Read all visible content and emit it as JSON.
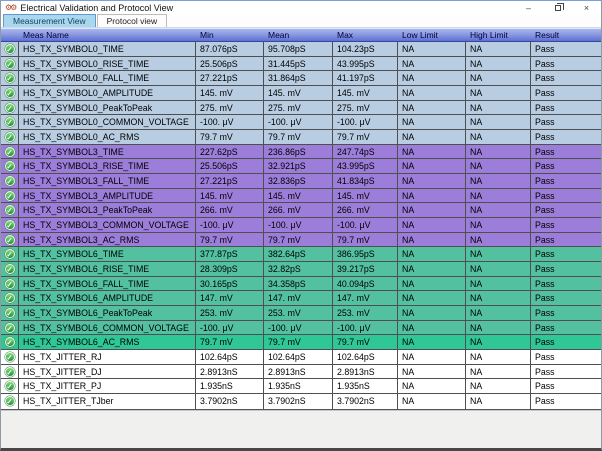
{
  "window": {
    "title": "Electrical Validation and Protocol View",
    "controls": {
      "minimize": "–",
      "close": "×"
    }
  },
  "tabs": [
    {
      "label": "Measurement View",
      "active": true
    },
    {
      "label": "Protocol view",
      "active": false
    }
  ],
  "table": {
    "columns": [
      "Meas Name",
      "Min",
      "Mean",
      "Max",
      "Low Limit",
      "High Limit",
      "Result"
    ],
    "status_icon": "pass-check-icon",
    "rows": [
      {
        "name": "HS_TX_SYMBOL0_TIME",
        "min": "87.076pS",
        "mean": "95.708pS",
        "max": "104.23pS",
        "low": "NA",
        "high": "NA",
        "result": "Pass",
        "group": "symbol0"
      },
      {
        "name": "HS_TX_SYMBOL0_RISE_TIME",
        "min": "25.506pS",
        "mean": "31.445pS",
        "max": "43.995pS",
        "low": "NA",
        "high": "NA",
        "result": "Pass",
        "group": "symbol0"
      },
      {
        "name": "HS_TX_SYMBOL0_FALL_TIME",
        "min": "27.221pS",
        "mean": "31.864pS",
        "max": "41.197pS",
        "low": "NA",
        "high": "NA",
        "result": "Pass",
        "group": "symbol0"
      },
      {
        "name": "HS_TX_SYMBOL0_AMPLITUDE",
        "min": "145. mV",
        "mean": "145. mV",
        "max": "145. mV",
        "low": "NA",
        "high": "NA",
        "result": "Pass",
        "group": "symbol0"
      },
      {
        "name": "HS_TX_SYMBOL0_PeakToPeak",
        "min": "275. mV",
        "mean": "275. mV",
        "max": "275. mV",
        "low": "NA",
        "high": "NA",
        "result": "Pass",
        "group": "symbol0"
      },
      {
        "name": "HS_TX_SYMBOL0_COMMON_VOLTAGE",
        "min": "-100. μV",
        "mean": "-100. μV",
        "max": "-100. μV",
        "low": "NA",
        "high": "NA",
        "result": "Pass",
        "group": "symbol0"
      },
      {
        "name": "HS_TX_SYMBOL0_AC_RMS",
        "min": "79.7 mV",
        "mean": "79.7 mV",
        "max": "79.7 mV",
        "low": "NA",
        "high": "NA",
        "result": "Pass",
        "group": "symbol0"
      },
      {
        "name": "HS_TX_SYMBOL3_TIME",
        "min": "227.62pS",
        "mean": "236.86pS",
        "max": "247.74pS",
        "low": "NA",
        "high": "NA",
        "result": "Pass",
        "group": "symbol3"
      },
      {
        "name": "HS_TX_SYMBOL3_RISE_TIME",
        "min": "25.506pS",
        "mean": "32.921pS",
        "max": "43.995pS",
        "low": "NA",
        "high": "NA",
        "result": "Pass",
        "group": "symbol3"
      },
      {
        "name": "HS_TX_SYMBOL3_FALL_TIME",
        "min": "27.221pS",
        "mean": "32.836pS",
        "max": "41.834pS",
        "low": "NA",
        "high": "NA",
        "result": "Pass",
        "group": "symbol3"
      },
      {
        "name": "HS_TX_SYMBOL3_AMPLITUDE",
        "min": "145. mV",
        "mean": "145. mV",
        "max": "145. mV",
        "low": "NA",
        "high": "NA",
        "result": "Pass",
        "group": "symbol3"
      },
      {
        "name": "HS_TX_SYMBOL3_PeakToPeak",
        "min": "266. mV",
        "mean": "266. mV",
        "max": "266. mV",
        "low": "NA",
        "high": "NA",
        "result": "Pass",
        "group": "symbol3"
      },
      {
        "name": "HS_TX_SYMBOL3_COMMON_VOLTAGE",
        "min": "-100. μV",
        "mean": "-100. μV",
        "max": "-100. μV",
        "low": "NA",
        "high": "NA",
        "result": "Pass",
        "group": "symbol3"
      },
      {
        "name": "HS_TX_SYMBOL3_AC_RMS",
        "min": "79.7 mV",
        "mean": "79.7 mV",
        "max": "79.7 mV",
        "low": "NA",
        "high": "NA",
        "result": "Pass",
        "group": "symbol3"
      },
      {
        "name": "HS_TX_SYMBOL6_TIME",
        "min": "377.87pS",
        "mean": "382.64pS",
        "max": "386.95pS",
        "low": "NA",
        "high": "NA",
        "result": "Pass",
        "group": "symbol6"
      },
      {
        "name": "HS_TX_SYMBOL6_RISE_TIME",
        "min": "28.309pS",
        "mean": "32.82pS",
        "max": "39.217pS",
        "low": "NA",
        "high": "NA",
        "result": "Pass",
        "group": "symbol6"
      },
      {
        "name": "HS_TX_SYMBOL6_FALL_TIME",
        "min": "30.165pS",
        "mean": "34.358pS",
        "max": "40.094pS",
        "low": "NA",
        "high": "NA",
        "result": "Pass",
        "group": "symbol6"
      },
      {
        "name": "HS_TX_SYMBOL6_AMPLITUDE",
        "min": "147. mV",
        "mean": "147. mV",
        "max": "147. mV",
        "low": "NA",
        "high": "NA",
        "result": "Pass",
        "group": "symbol6"
      },
      {
        "name": "HS_TX_SYMBOL6_PeakToPeak",
        "min": "253. mV",
        "mean": "253. mV",
        "max": "253. mV",
        "low": "NA",
        "high": "NA",
        "result": "Pass",
        "group": "symbol6"
      },
      {
        "name": "HS_TX_SYMBOL6_COMMON_VOLTAGE",
        "min": "-100. μV",
        "mean": "-100. μV",
        "max": "-100. μV",
        "low": "NA",
        "high": "NA",
        "result": "Pass",
        "group": "symbol6"
      },
      {
        "name": "HS_TX_SYMBOL6_AC_RMS",
        "min": "79.7 mV",
        "mean": "79.7 mV",
        "max": "79.7 mV",
        "low": "NA",
        "high": "NA",
        "result": "Pass",
        "group": "symbol6_bright"
      },
      {
        "name": "HS_TX_JITTER_RJ",
        "min": "102.64pS",
        "mean": "102.64pS",
        "max": "102.64pS",
        "low": "NA",
        "high": "NA",
        "result": "Pass",
        "group": "jitter"
      },
      {
        "name": "HS_TX_JITTER_DJ",
        "min": "2.8913nS",
        "mean": "2.8913nS",
        "max": "2.8913nS",
        "low": "NA",
        "high": "NA",
        "result": "Pass",
        "group": "jitter"
      },
      {
        "name": "HS_TX_JITTER_PJ",
        "min": "1.935nS",
        "mean": "1.935nS",
        "max": "1.935nS",
        "low": "NA",
        "high": "NA",
        "result": "Pass",
        "group": "jitter"
      },
      {
        "name": "HS_TX_JITTER_TJber",
        "min": "3.7902nS",
        "mean": "3.7902nS",
        "max": "3.7902nS",
        "low": "NA",
        "high": "NA",
        "result": "Pass",
        "group": "jitter"
      }
    ]
  },
  "colors": {
    "header_grad_top": "#aab6ee",
    "header_grad_bottom": "#5d6fd2",
    "header_text": "#00003c",
    "tab_active_bg": "#a9d7ee",
    "tab_active_text": "#173f5f",
    "check_green": "#3aa94a",
    "group_symbol0": "#b9cde2",
    "group_symbol3": "#9c7dda",
    "group_symbol6": "#53c0a0",
    "group_symbol6_bright": "#2fc795",
    "group_jitter": "#ffffff"
  }
}
